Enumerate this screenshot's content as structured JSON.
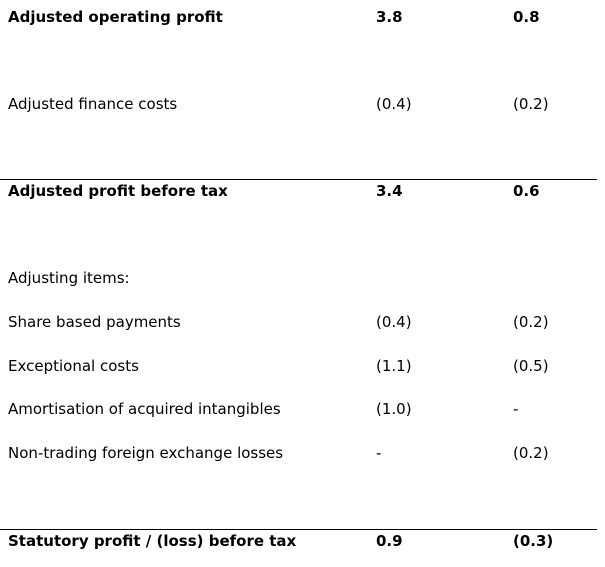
{
  "rows": [
    {
      "label": "Adjusted operating profit",
      "c1": "3.8",
      "c2": "0.8"
    },
    {
      "label": "Adjusted finance costs",
      "c1": "(0.4)",
      "c2": "(0.2)"
    },
    {
      "label": "Adjusted profit before tax",
      "c1": "3.4",
      "c2": "0.6"
    },
    {
      "label": "Adjusting items:"
    },
    {
      "label": "Share based payments",
      "c1": "(0.4)",
      "c2": "(0.2)"
    },
    {
      "label": "Exceptional costs",
      "c1": "(1.1)",
      "c2": "(0.5)"
    },
    {
      "label": "Amortisation of acquired intangibles",
      "c1": "(1.0)",
      "c2": "-"
    },
    {
      "label": "Non-trading foreign exchange losses",
      "c1": "-",
      "c2": "(0.2)"
    },
    {
      "label": "Statutory profit / (loss) before tax",
      "c1": "0.9",
      "c2": "(0.3)"
    }
  ]
}
